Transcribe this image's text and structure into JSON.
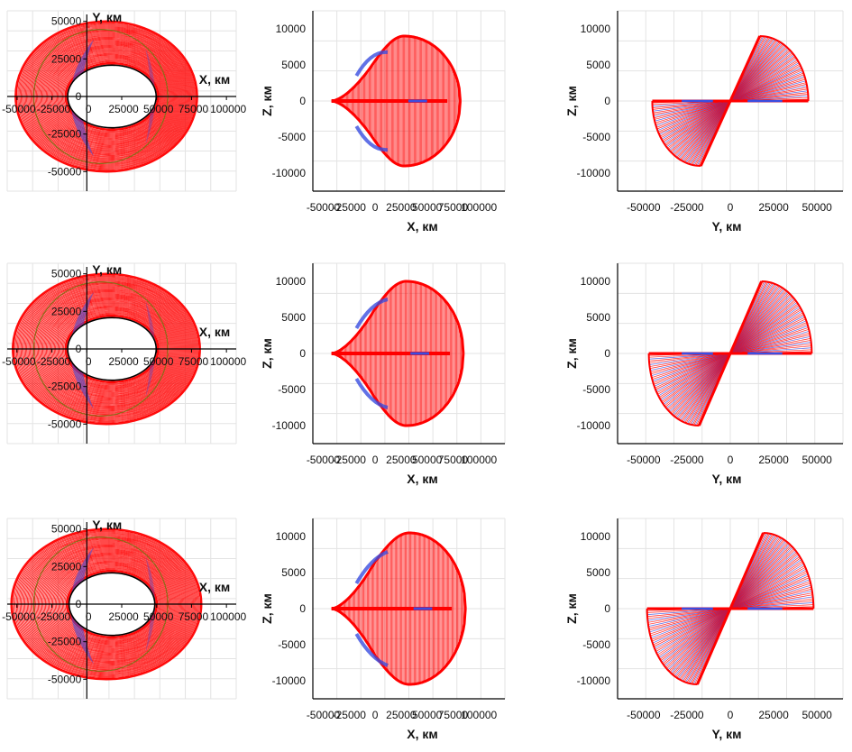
{
  "figure": {
    "rows": 3,
    "columns": 3
  },
  "colors": {
    "orbit": "#ff0000",
    "shadow": "#3a4de0",
    "grid": "#e3e3e3",
    "axis": "#000000",
    "text": "#111111",
    "earth_outline": "#000000"
  },
  "chart_data": [
    {
      "type": "line",
      "view": "xy",
      "row": 1,
      "title": "",
      "xlabel": "X, км",
      "ylabel": "Y, км",
      "xticks": [
        "-50000",
        "-25000",
        "0",
        "25000",
        "50000",
        "75000",
        "100000"
      ],
      "yticks": [
        "50000",
        "25000",
        "0",
        "-25000",
        "-50000"
      ],
      "xlim": [
        -57000,
        107000
      ],
      "ylim": [
        -63000,
        57000
      ],
      "orbit": {
        "center_x": 18000,
        "center_y": 0,
        "outer_half_width": 65000,
        "outer_half_height": 50000,
        "inner_half_width": 33000,
        "inner_half_height": 22000,
        "inner_center_x": 18000
      },
      "series": [
        {
          "name": "orbits",
          "color": "#ff0000"
        },
        {
          "name": "shadow",
          "color": "#3a4de0"
        }
      ]
    },
    {
      "type": "line",
      "view": "xz",
      "row": 1,
      "title": "",
      "xlabel": "X, км",
      "ylabel": "Z, км",
      "xticks": [
        "-50000",
        "-25000",
        "0",
        "25000",
        "50000",
        "75000",
        "100000"
      ],
      "yticks": [
        "10000",
        "5000",
        "0",
        "-5000",
        "-10000"
      ],
      "xlim": [
        -60000,
        125000
      ],
      "ylim": [
        -12500,
        12500
      ],
      "profile": {
        "x_min": -42000,
        "x_max": 82000,
        "z_max": 9000,
        "x_at_zmax": 28000
      },
      "series": [
        {
          "name": "orbits",
          "color": "#ff0000"
        },
        {
          "name": "shadow",
          "color": "#3a4de0"
        }
      ]
    },
    {
      "type": "line",
      "view": "yz",
      "row": 1,
      "title": "",
      "xlabel": "Y, км",
      "ylabel": "Z, км",
      "xticks": [
        "-50000",
        "-25000",
        "0",
        "25000",
        "50000"
      ],
      "yticks": [
        "10000",
        "5000",
        "0",
        "-5000",
        "-10000"
      ],
      "xlim": [
        -65000,
        65000
      ],
      "ylim": [
        -12500,
        12500
      ],
      "fan": {
        "y_extent": 45000,
        "z_max": 9000,
        "y_at_zmax": 17000
      },
      "series": [
        {
          "name": "orbits",
          "color": "#ff0000"
        },
        {
          "name": "shadow",
          "color": "#3a4de0"
        }
      ]
    },
    {
      "type": "line",
      "view": "xy",
      "row": 2,
      "title": "",
      "xlabel": "X, км",
      "ylabel": "Y, км",
      "xticks": [
        "-50000",
        "-25000",
        "0",
        "25000",
        "50000",
        "75000",
        "100000"
      ],
      "yticks": [
        "50000",
        "25000",
        "0",
        "-25000",
        "-50000"
      ],
      "xlim": [
        -57000,
        107000
      ],
      "ylim": [
        -63000,
        57000
      ],
      "orbit": {
        "center_x": 18000,
        "center_y": 0,
        "outer_half_width": 67000,
        "outer_half_height": 50000,
        "inner_half_width": 33000,
        "inner_half_height": 22000,
        "inner_center_x": 18000
      },
      "series": [
        {
          "name": "orbits",
          "color": "#ff0000"
        },
        {
          "name": "shadow",
          "color": "#3a4de0"
        }
      ]
    },
    {
      "type": "line",
      "view": "xz",
      "row": 2,
      "title": "",
      "xlabel": "X, км",
      "ylabel": "Z, км",
      "xticks": [
        "-50000",
        "-25000",
        "0",
        "25000",
        "50000",
        "75000",
        "100000"
      ],
      "yticks": [
        "10000",
        "5000",
        "0",
        "-5000",
        "-10000"
      ],
      "xlim": [
        -60000,
        125000
      ],
      "ylim": [
        -12500,
        12500
      ],
      "profile": {
        "x_min": -42000,
        "x_max": 85000,
        "z_max": 10000,
        "x_at_zmax": 30000
      },
      "series": [
        {
          "name": "orbits",
          "color": "#ff0000"
        },
        {
          "name": "shadow",
          "color": "#3a4de0"
        }
      ]
    },
    {
      "type": "line",
      "view": "yz",
      "row": 2,
      "title": "",
      "xlabel": "Y, км",
      "ylabel": "Z, км",
      "xticks": [
        "-50000",
        "-25000",
        "0",
        "25000",
        "50000"
      ],
      "yticks": [
        "10000",
        "5000",
        "0",
        "-5000",
        "-10000"
      ],
      "xlim": [
        -65000,
        65000
      ],
      "ylim": [
        -12500,
        12500
      ],
      "fan": {
        "y_extent": 47000,
        "z_max": 10000,
        "y_at_zmax": 18000
      },
      "series": [
        {
          "name": "orbits",
          "color": "#ff0000"
        },
        {
          "name": "shadow",
          "color": "#3a4de0"
        }
      ]
    },
    {
      "type": "line",
      "view": "xy",
      "row": 3,
      "title": "",
      "xlabel": "X, км",
      "ylabel": "Y, км",
      "xticks": [
        "-50000",
        "-25000",
        "0",
        "25000",
        "50000",
        "75000",
        "100000"
      ],
      "yticks": [
        "50000",
        "25000",
        "0",
        "-25000",
        "-50000"
      ],
      "xlim": [
        -57000,
        107000
      ],
      "ylim": [
        -63000,
        57000
      ],
      "orbit": {
        "center_x": 18000,
        "center_y": 0,
        "outer_half_width": 68000,
        "outer_half_height": 50000,
        "inner_half_width": 32000,
        "inner_half_height": 22000,
        "inner_center_x": 18000
      },
      "series": [
        {
          "name": "orbits",
          "color": "#ff0000"
        },
        {
          "name": "shadow",
          "color": "#3a4de0"
        }
      ]
    },
    {
      "type": "line",
      "view": "xz",
      "row": 3,
      "title": "",
      "xlabel": "X, км",
      "ylabel": "Z, км",
      "xticks": [
        "-50000",
        "-25000",
        "0",
        "25000",
        "50000",
        "75000",
        "100000"
      ],
      "yticks": [
        "10000",
        "5000",
        "0",
        "-5000",
        "-10000"
      ],
      "xlim": [
        -60000,
        125000
      ],
      "ylim": [
        -12500,
        12500
      ],
      "profile": {
        "x_min": -42000,
        "x_max": 87000,
        "z_max": 10500,
        "x_at_zmax": 33000
      },
      "series": [
        {
          "name": "orbits",
          "color": "#ff0000"
        },
        {
          "name": "shadow",
          "color": "#3a4de0"
        }
      ]
    },
    {
      "type": "line",
      "view": "yz",
      "row": 3,
      "title": "",
      "xlabel": "Y, км",
      "ylabel": "Z, км",
      "xticks": [
        "-50000",
        "-25000",
        "0",
        "25000",
        "50000"
      ],
      "yticks": [
        "10000",
        "5000",
        "0",
        "-5000",
        "-10000"
      ],
      "xlim": [
        -65000,
        65000
      ],
      "ylim": [
        -12500,
        12500
      ],
      "fan": {
        "y_extent": 48000,
        "z_max": 10500,
        "y_at_zmax": 19000
      },
      "series": [
        {
          "name": "orbits",
          "color": "#ff0000"
        },
        {
          "name": "shadow",
          "color": "#3a4de0"
        }
      ]
    }
  ]
}
